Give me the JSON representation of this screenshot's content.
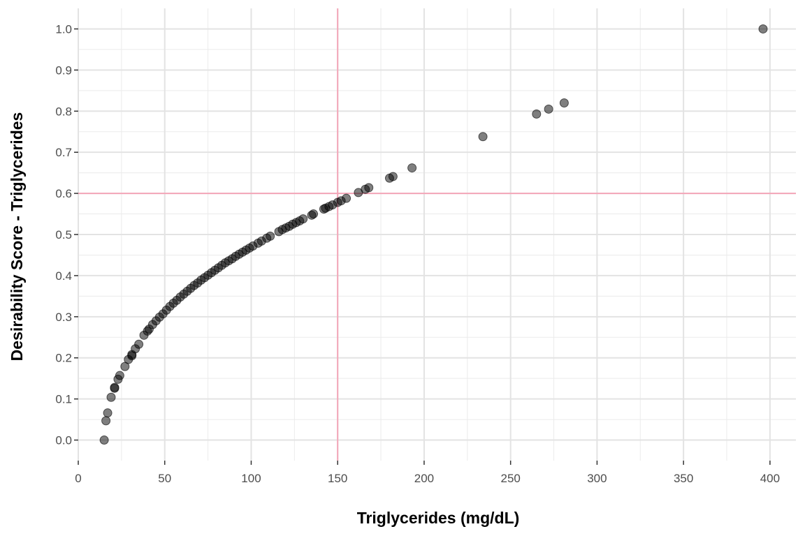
{
  "chart_data": {
    "type": "scatter",
    "title": "",
    "xlabel": "Triglycerides (mg/dL)",
    "ylabel": "Desirability Score - Triglycerides",
    "xlim": [
      0,
      415
    ],
    "ylim": [
      -0.05,
      1.05
    ],
    "x_ticks": [
      0,
      50,
      100,
      150,
      200,
      250,
      300,
      350,
      400
    ],
    "y_ticks": [
      0.0,
      0.1,
      0.2,
      0.3,
      0.4,
      0.5,
      0.6,
      0.7,
      0.8,
      0.9,
      1.0
    ],
    "x_tick_labels": [
      "0",
      "50",
      "100",
      "150",
      "200",
      "250",
      "300",
      "350",
      "400"
    ],
    "y_tick_labels": [
      "0.0",
      "0.1",
      "0.2",
      "0.3",
      "0.4",
      "0.5",
      "0.6",
      "0.7",
      "0.8",
      "0.9",
      "1.0"
    ],
    "grid": true,
    "point_color": "#000000",
    "point_opacity": 0.5,
    "reference_lines": {
      "color": "#f4a6b8",
      "vertical_x": 150,
      "horizontal_y": 0.6
    },
    "x": [
      15,
      16,
      17,
      19,
      21,
      21,
      23,
      24,
      27,
      29,
      31,
      31,
      33,
      35,
      38,
      40,
      41,
      43,
      45,
      47,
      49,
      51,
      53,
      55,
      57,
      59,
      61,
      63,
      65,
      67,
      69,
      71,
      73,
      75,
      77,
      79,
      81,
      83,
      85,
      87,
      89,
      91,
      93,
      95,
      97,
      99,
      101,
      104,
      106,
      109,
      111,
      116,
      118,
      120,
      122,
      124,
      126,
      128,
      130,
      135,
      136,
      142,
      143,
      145,
      147,
      150,
      152,
      155,
      162,
      166,
      168,
      180,
      182,
      193,
      234,
      265,
      272,
      281,
      396
    ],
    "y": [
      0.0,
      0.047,
      0.066,
      0.104,
      0.126,
      0.128,
      0.148,
      0.157,
      0.179,
      0.196,
      0.205,
      0.208,
      0.222,
      0.233,
      0.255,
      0.265,
      0.27,
      0.281,
      0.29,
      0.299,
      0.307,
      0.316,
      0.325,
      0.333,
      0.34,
      0.348,
      0.355,
      0.362,
      0.369,
      0.376,
      0.382,
      0.389,
      0.395,
      0.401,
      0.407,
      0.413,
      0.419,
      0.425,
      0.431,
      0.436,
      0.441,
      0.447,
      0.452,
      0.457,
      0.462,
      0.467,
      0.472,
      0.479,
      0.484,
      0.491,
      0.496,
      0.507,
      0.512,
      0.516,
      0.52,
      0.525,
      0.529,
      0.533,
      0.538,
      0.547,
      0.55,
      0.562,
      0.564,
      0.568,
      0.572,
      0.578,
      0.582,
      0.588,
      0.602,
      0.61,
      0.614,
      0.637,
      0.641,
      0.662,
      0.738,
      0.793,
      0.805,
      0.82,
      1.0
    ]
  }
}
